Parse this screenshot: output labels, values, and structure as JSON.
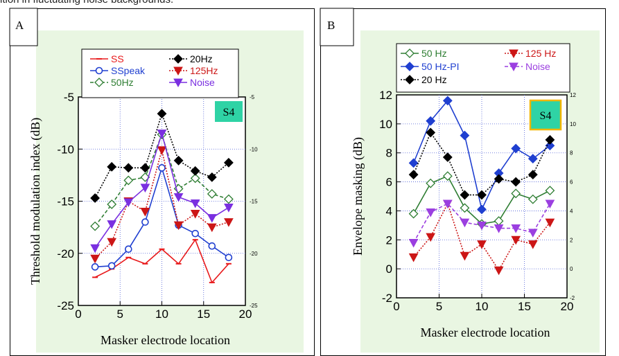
{
  "caption": "ition in fluctuating noise backgrounds.",
  "chart_data": [
    {
      "panel_label": "A",
      "type": "line",
      "subject_tag": "S4",
      "xlabel": "Masker electrode location",
      "ylabel": "Threshold modulation index (dB)",
      "xlim": [
        0,
        20
      ],
      "ylim": [
        -25,
        -5
      ],
      "xticks": [
        "0",
        "5",
        "10",
        "15",
        "20"
      ],
      "yticks": [
        "-25",
        "-20",
        "-15",
        "-10",
        "-5"
      ],
      "right_yticks": [
        "-25",
        "-20",
        "-15",
        "-10",
        "-5"
      ],
      "grid": true,
      "legend_position": "top",
      "x": [
        2,
        4,
        6,
        8,
        10,
        12,
        14,
        16,
        18
      ],
      "series": [
        {
          "name": "SS",
          "color": "#e8191b",
          "marker": "dash",
          "line": "solid",
          "values": [
            -22.3,
            -21.5,
            -20.4,
            -21.0,
            -19.6,
            -21.0,
            -18.7,
            -22.8,
            -21.0
          ]
        },
        {
          "name": "SSpeak",
          "color": "#1f3fd0",
          "marker": "circle",
          "line": "solid",
          "values": [
            -21.3,
            -21.2,
            -19.6,
            -17.0,
            -11.8,
            -17.3,
            -18.1,
            -19.3,
            -20.4
          ]
        },
        {
          "name": "50Hz",
          "color": "#2e7d32",
          "marker": "diamond-open",
          "line": "dashed",
          "values": [
            -17.4,
            -15.3,
            -13.0,
            -12.7,
            -8.6,
            -13.8,
            -12.8,
            -14.3,
            -14.8
          ]
        },
        {
          "name": "20Hz",
          "color": "#000000",
          "marker": "diamond",
          "line": "dotted",
          "values": [
            -14.7,
            -11.7,
            -11.8,
            -11.8,
            -6.6,
            -11.1,
            -12.1,
            -12.7,
            -11.3
          ]
        },
        {
          "name": "125Hz",
          "color": "#cc1616",
          "marker": "triangle-down",
          "line": "dotted",
          "values": [
            -20.5,
            -18.9,
            -15.0,
            -16.0,
            -10.1,
            -17.3,
            -16.2,
            -17.5,
            -17.0
          ]
        },
        {
          "name": "Noise",
          "color": "#7a2fe0",
          "marker": "triangle-down",
          "line": "solid",
          "values": [
            -19.5,
            -17.2,
            -15.1,
            -13.7,
            -8.5,
            -14.6,
            -15.2,
            -16.6,
            -15.6
          ]
        }
      ]
    },
    {
      "panel_label": "B",
      "type": "line",
      "subject_tag": "S4",
      "xlabel": "Masker electrode location",
      "ylabel": "Envelope masking (dB)",
      "xlim": [
        0,
        20
      ],
      "ylim": [
        -2,
        12
      ],
      "xticks": [
        "0",
        "5",
        "10",
        "15",
        "20"
      ],
      "yticks": [
        "-2",
        "0",
        "2",
        "4",
        "6",
        "8",
        "10",
        "12"
      ],
      "right_yticks": [
        "-2",
        "0",
        "2",
        "4",
        "6",
        "8",
        "10",
        "12"
      ],
      "grid": true,
      "legend_position": "top",
      "x": [
        2,
        4,
        6,
        8,
        10,
        12,
        14,
        16,
        18
      ],
      "series": [
        {
          "name": "50 Hz",
          "color": "#2e7d32",
          "marker": "diamond-open",
          "line": "solid",
          "values": [
            3.8,
            5.9,
            6.4,
            4.2,
            3.1,
            3.3,
            5.2,
            4.8,
            5.4
          ]
        },
        {
          "name": "50 Hz-PI",
          "color": "#1f3fd0",
          "marker": "diamond",
          "line": "solid",
          "values": [
            7.3,
            10.2,
            11.6,
            9.2,
            4.1,
            6.6,
            8.3,
            7.6,
            8.5
          ]
        },
        {
          "name": "20 Hz",
          "color": "#000000",
          "marker": "diamond",
          "line": "dotted",
          "values": [
            6.5,
            9.4,
            7.7,
            5.1,
            5.1,
            6.2,
            6.0,
            6.5,
            8.9
          ]
        },
        {
          "name": "125 Hz",
          "color": "#cc1616",
          "marker": "triangle-down",
          "line": "dotted",
          "values": [
            0.8,
            2.2,
            4.5,
            0.9,
            1.7,
            -0.1,
            2.0,
            1.7,
            3.2
          ]
        },
        {
          "name": "Noise",
          "color": "#9b3fe0",
          "marker": "triangle-down",
          "line": "dashed",
          "values": [
            1.8,
            3.9,
            4.5,
            3.2,
            3.0,
            2.8,
            2.8,
            2.5,
            4.5
          ]
        }
      ]
    }
  ]
}
